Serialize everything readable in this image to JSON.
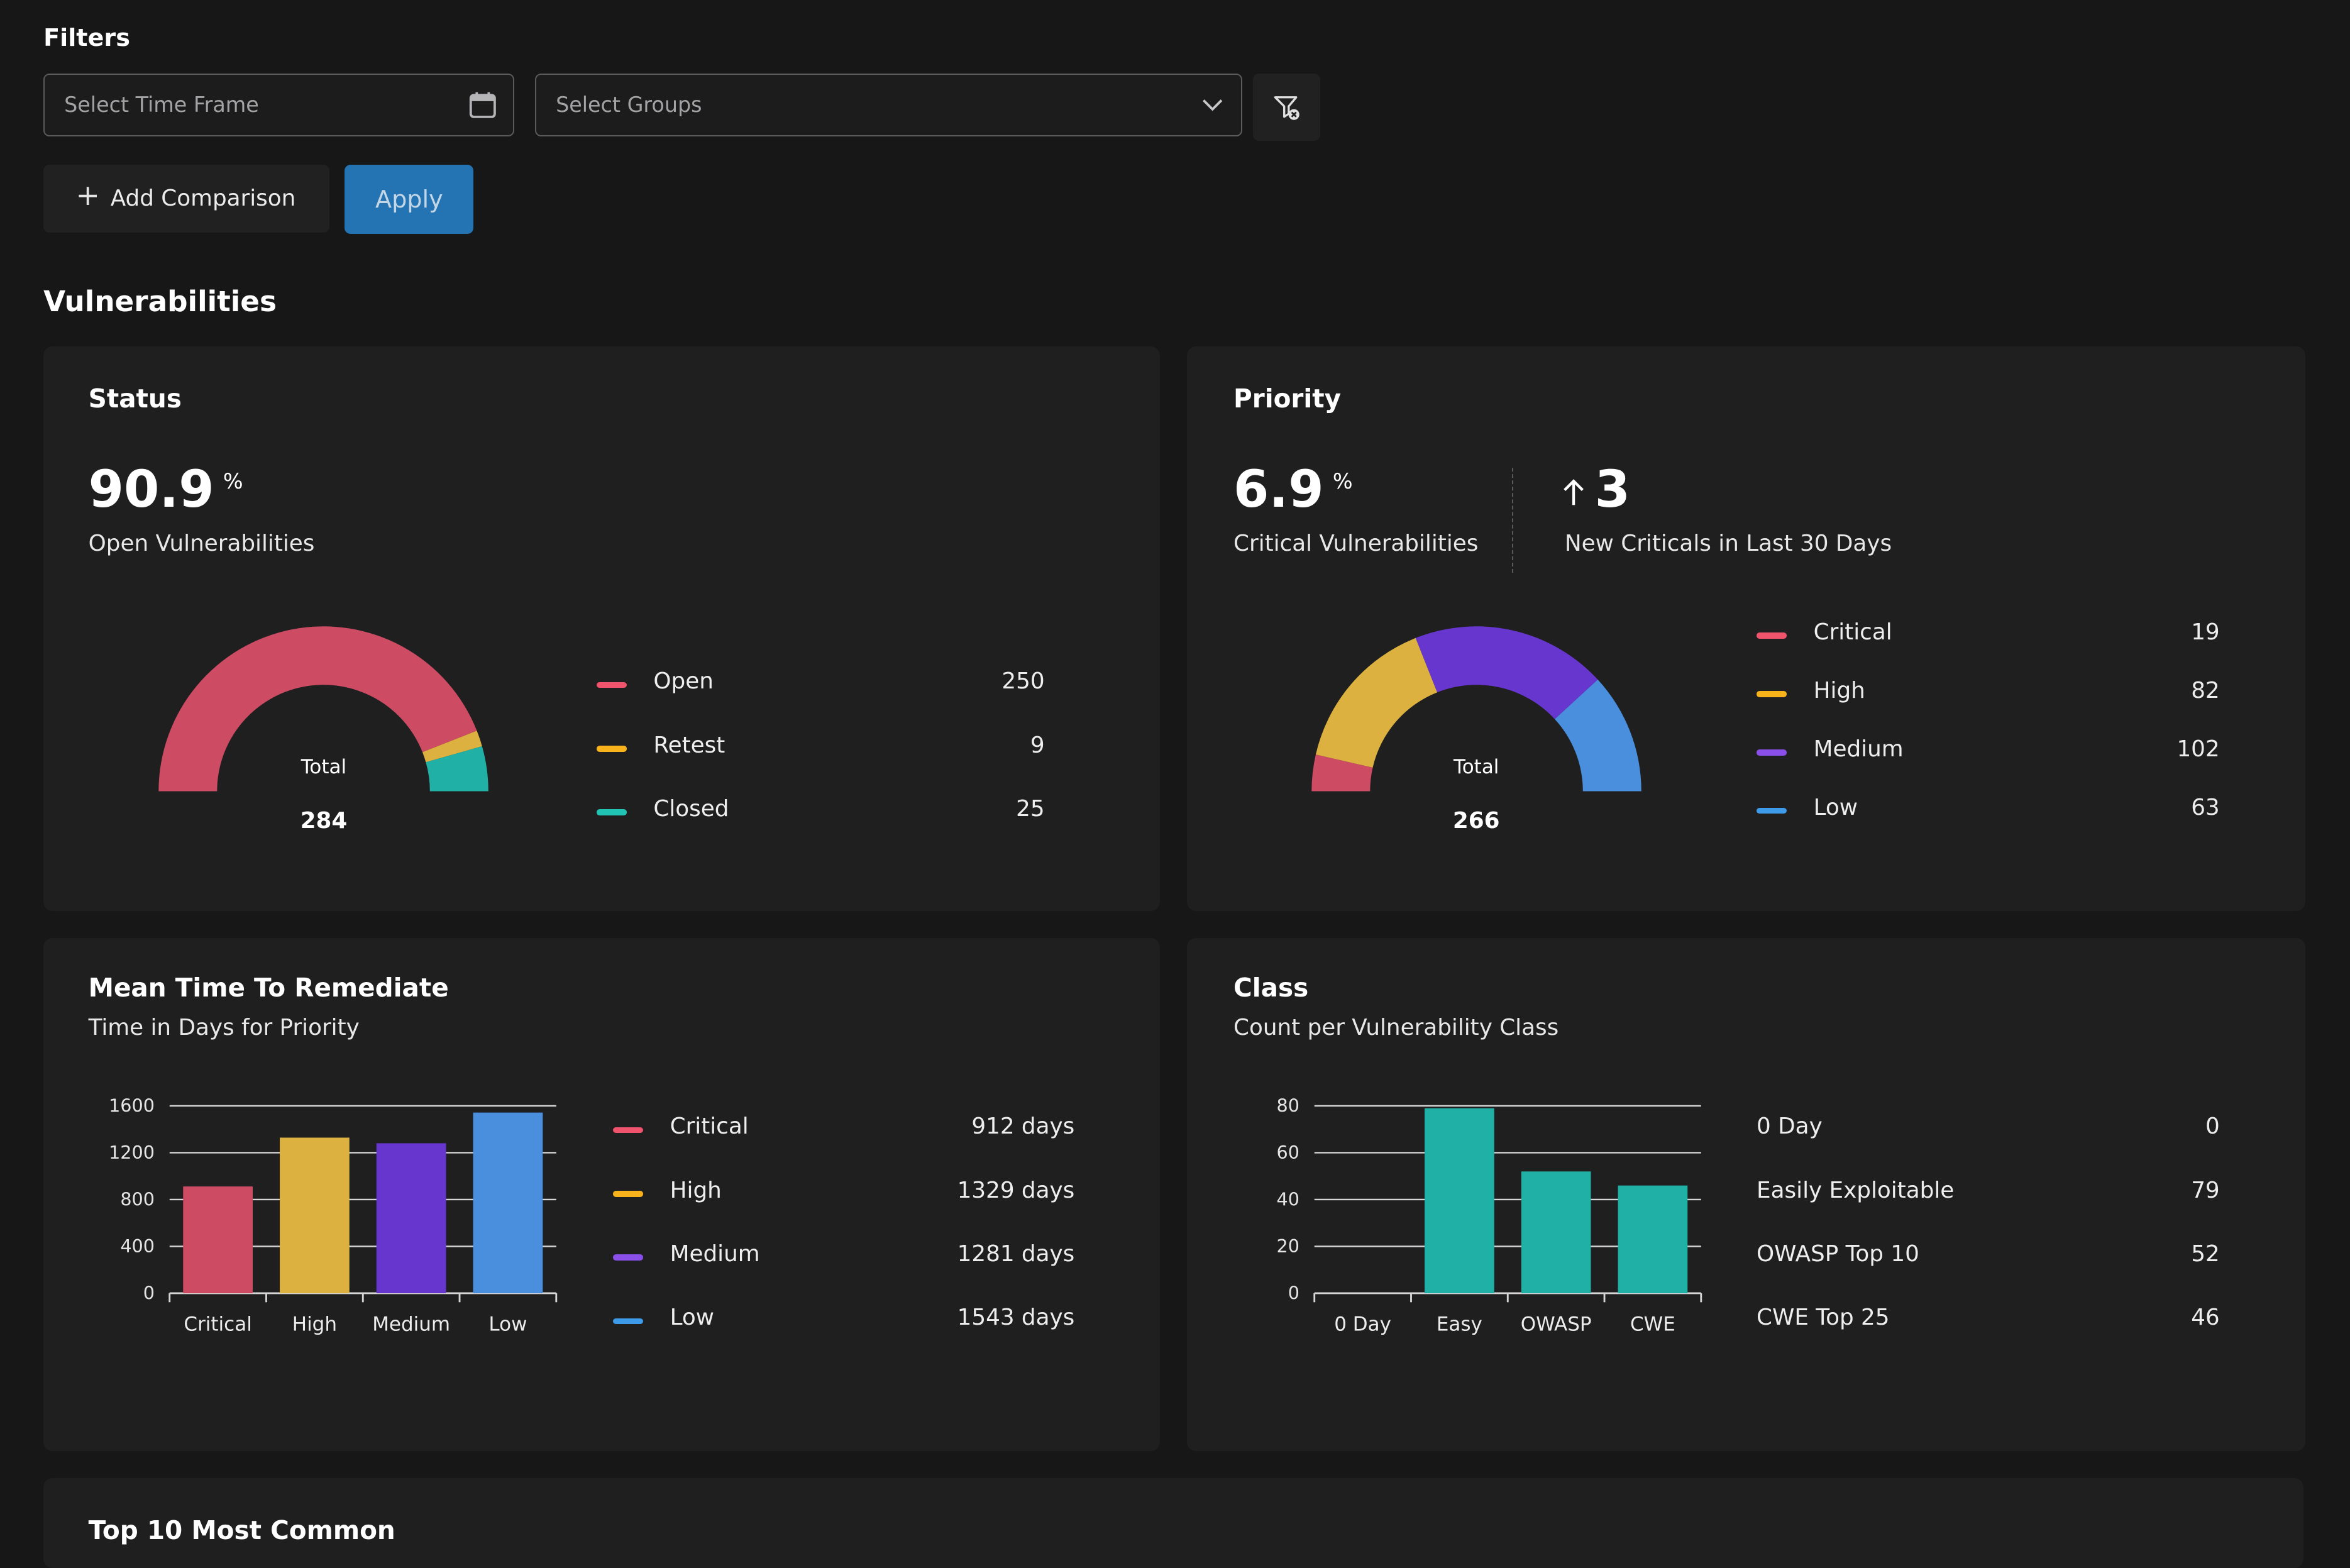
{
  "filters": {
    "heading": "Filters",
    "time_frame_placeholder": "Select Time Frame",
    "groups_placeholder": "Select Groups",
    "add_comparison_label": "Add Comparison",
    "apply_label": "Apply"
  },
  "section_title": "Vulnerabilities",
  "status": {
    "title": "Status",
    "value": "90.9",
    "unit": "%",
    "caption": "Open Vulnerabilities",
    "total_label": "Total",
    "total": "284",
    "legend": [
      {
        "name": "Open",
        "value": "250",
        "color": "#f0546c"
      },
      {
        "name": "Retest",
        "value": "9",
        "color": "#f7b21c"
      },
      {
        "name": "Closed",
        "value": "25",
        "color": "#21c4b4"
      }
    ]
  },
  "priority": {
    "title": "Priority",
    "value": "6.9",
    "unit": "%",
    "caption": "Critical Vulnerabilities",
    "new_value": "3",
    "new_caption": "New Criticals in Last 30 Days",
    "total_label": "Total",
    "total": "266",
    "legend": [
      {
        "name": "Critical",
        "value": "19",
        "color": "#f0546c"
      },
      {
        "name": "High",
        "value": "82",
        "color": "#f7b21c"
      },
      {
        "name": "Medium",
        "value": "102",
        "color": "#8a4fe8"
      },
      {
        "name": "Low",
        "value": "63",
        "color": "#3d9be9"
      }
    ]
  },
  "mttr": {
    "title": "Mean Time To Remediate",
    "subtitle": "Time in Days for Priority",
    "legend": [
      {
        "name": "Critical",
        "value": "912 days",
        "color": "#f0546c"
      },
      {
        "name": "High",
        "value": "1329 days",
        "color": "#f7b21c"
      },
      {
        "name": "Medium",
        "value": "1281 days",
        "color": "#8a4fe8"
      },
      {
        "name": "Low",
        "value": "1543 days",
        "color": "#3d9be9"
      }
    ]
  },
  "class": {
    "title": "Class",
    "subtitle": "Count per Vulnerability Class",
    "legend": [
      {
        "name": "0 Day",
        "value": "0"
      },
      {
        "name": "Easily Exploitable",
        "value": "79"
      },
      {
        "name": "OWASP Top 10",
        "value": "52"
      },
      {
        "name": "CWE Top 25",
        "value": "46"
      }
    ]
  },
  "top10": {
    "title": "Top 10 Most Common"
  },
  "chart_data": [
    {
      "type": "pie",
      "title": "Status",
      "categories": [
        "Open",
        "Retest",
        "Closed"
      ],
      "values": [
        250,
        9,
        25
      ],
      "colors": [
        "#cd4b63",
        "#dcb13f",
        "#21b0a6"
      ],
      "style": "semi-donut"
    },
    {
      "type": "pie",
      "title": "Priority",
      "categories": [
        "Critical",
        "High",
        "Medium",
        "Low"
      ],
      "values": [
        19,
        82,
        102,
        63
      ],
      "colors": [
        "#cd4b63",
        "#dcb13f",
        "#6736cf",
        "#4a8fdd"
      ],
      "style": "semi-donut"
    },
    {
      "type": "bar",
      "title": "Mean Time To Remediate",
      "categories": [
        "Critical",
        "High",
        "Medium",
        "Low"
      ],
      "values": [
        912,
        1329,
        1281,
        1543
      ],
      "colors": [
        "#cd4b63",
        "#dcb13f",
        "#6736cf",
        "#4a8fdd"
      ],
      "ylim": [
        0,
        1600
      ],
      "yticks": [
        0,
        400,
        800,
        1200,
        1600
      ],
      "grid": true
    },
    {
      "type": "bar",
      "title": "Class",
      "categories": [
        "0 Day",
        "Easy",
        "OWASP",
        "CWE"
      ],
      "values": [
        0,
        79,
        52,
        46
      ],
      "colors": [
        "#21b0a6",
        "#21b0a6",
        "#21b0a6",
        "#21b0a6"
      ],
      "ylim": [
        0,
        80
      ],
      "yticks": [
        0,
        20,
        40,
        60,
        80
      ],
      "grid": true
    }
  ]
}
